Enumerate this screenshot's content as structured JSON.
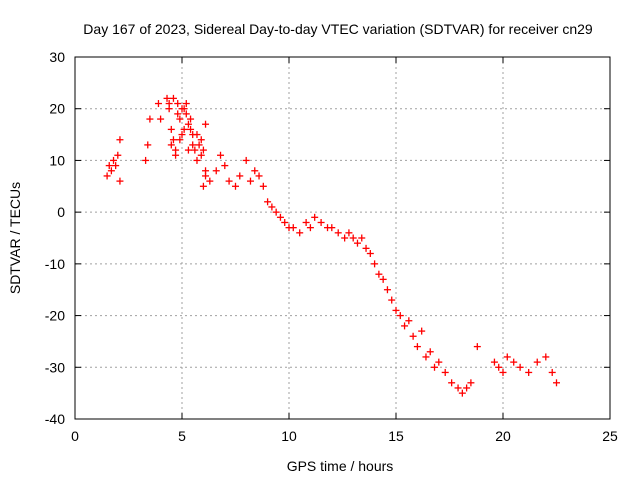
{
  "chart_data": {
    "type": "scatter",
    "title": "Day 167 of 2023, Sidereal Day-to-day VTEC variation (SDTVAR) for receiver cn29",
    "xlabel": "GPS time / hours",
    "ylabel": "SDTVAR / TECUs",
    "xlim": [
      0,
      25
    ],
    "ylim": [
      -40,
      30
    ],
    "x_ticks": [
      0,
      5,
      10,
      15,
      20,
      25
    ],
    "y_ticks": [
      -40,
      -30,
      -20,
      -10,
      0,
      10,
      20,
      30
    ],
    "x_tick_labels": [
      "0",
      "5",
      "10",
      "15",
      "20",
      "25"
    ],
    "y_tick_labels": [
      "-40",
      "-30",
      "-20",
      "-10",
      "0",
      "10",
      "20",
      "30"
    ],
    "grid": true,
    "marker": "+",
    "color": "#ff0000",
    "series": [
      {
        "name": "SDTVAR",
        "x": [
          1.5,
          1.6,
          1.7,
          1.8,
          1.9,
          2.0,
          2.1,
          2.1,
          3.3,
          3.4,
          3.5,
          3.9,
          4.0,
          4.3,
          4.4,
          4.5,
          4.6,
          4.7,
          4.8,
          4.9,
          5.0,
          5.1,
          5.2,
          5.3,
          5.4,
          5.5,
          5.6,
          5.7,
          5.8,
          5.9,
          6.0,
          6.1,
          4.5,
          4.7,
          4.9,
          5.1,
          5.3,
          5.5,
          5.7,
          5.9,
          6.1,
          4.4,
          4.6,
          4.8,
          5.0,
          5.2,
          5.4,
          6.0,
          6.1,
          6.3,
          6.6,
          6.8,
          7.0,
          7.2,
          7.5,
          7.7,
          8.0,
          8.2,
          8.4,
          8.6,
          8.8,
          9.0,
          9.2,
          9.4,
          9.6,
          9.8,
          10.0,
          10.2,
          10.5,
          10.8,
          11.0,
          11.2,
          11.5,
          11.8,
          12.0,
          12.3,
          12.6,
          12.8,
          13.0,
          13.2,
          13.4,
          13.6,
          13.8,
          14.0,
          14.2,
          14.4,
          14.6,
          14.8,
          15.0,
          15.2,
          15.4,
          15.6,
          15.8,
          16.0,
          16.2,
          16.4,
          16.6,
          16.8,
          17.0,
          17.3,
          17.6,
          17.9,
          18.1,
          18.3,
          18.5,
          18.8,
          19.6,
          19.8,
          20.0,
          20.2,
          20.5,
          20.8,
          21.2,
          21.6,
          22.0,
          22.3,
          22.5
        ],
        "y": [
          7,
          9,
          8,
          10,
          9,
          11,
          14,
          6,
          10,
          13,
          18,
          21,
          18,
          22,
          20,
          16,
          14,
          12,
          21,
          18,
          15,
          20,
          19,
          17,
          16,
          15,
          12,
          10,
          13,
          14,
          12,
          8,
          13,
          11,
          14,
          16,
          12,
          13,
          15,
          11,
          17,
          21,
          22,
          19,
          20,
          21,
          18,
          5,
          7,
          6,
          8,
          11,
          9,
          6,
          5,
          7,
          10,
          6,
          8,
          7,
          5,
          2,
          1,
          0,
          -1,
          -2,
          -3,
          -3,
          -4,
          -2,
          -3,
          -1,
          -2,
          -3,
          -3,
          -4,
          -5,
          -4,
          -5,
          -6,
          -5,
          -7,
          -8,
          -10,
          -12,
          -13,
          -15,
          -17,
          -19,
          -20,
          -22,
          -21,
          -24,
          -26,
          -23,
          -28,
          -27,
          -30,
          -29,
          -31,
          -33,
          -34,
          -35,
          -34,
          -33,
          -26,
          -29,
          -30,
          -31,
          -28,
          -29,
          -30,
          -31,
          -29,
          -28,
          -31,
          -33
        ]
      }
    ]
  }
}
